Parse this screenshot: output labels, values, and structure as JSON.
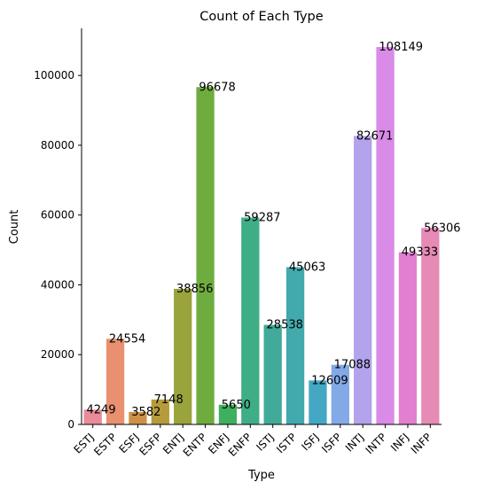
{
  "chart_data": {
    "type": "bar",
    "title": "Count of Each Type",
    "xlabel": "Type",
    "ylabel": "Count",
    "ylim": [
      0,
      113500
    ],
    "yticks": [
      0,
      20000,
      40000,
      60000,
      80000,
      100000
    ],
    "ytick_labels": [
      "0",
      "20000",
      "40000",
      "60000",
      "80000",
      "100000"
    ],
    "grid": false,
    "legend": "none",
    "categories": [
      "ESTJ",
      "ESTP",
      "ESFJ",
      "ESFP",
      "ENTJ",
      "ENTP",
      "ENFJ",
      "ENFP",
      "ISTJ",
      "ISTP",
      "ISFJ",
      "ISFP",
      "INTJ",
      "INTP",
      "INFJ",
      "INFP"
    ],
    "values": [
      4249,
      24554,
      3582,
      7148,
      38856,
      96678,
      5650,
      59287,
      28538,
      45063,
      12609,
      17088,
      82671,
      108149,
      49333,
      56306
    ],
    "value_labels": [
      "4249",
      "24554",
      "3582",
      "7148",
      "38856",
      "96678",
      "5650",
      "59287",
      "28538",
      "45063",
      "12609",
      "17088",
      "82671",
      "108149",
      "49333",
      "56306"
    ],
    "colors": [
      "#e98b99",
      "#e8906f",
      "#cd9146",
      "#b59b3b",
      "#9aa33c",
      "#6fac3f",
      "#3fb05f",
      "#3fae86",
      "#41aa99",
      "#42a9ad",
      "#44a7c3",
      "#83a9e6",
      "#b3a2ec",
      "#d98be7",
      "#e37fcf",
      "#e68ab6"
    ]
  }
}
